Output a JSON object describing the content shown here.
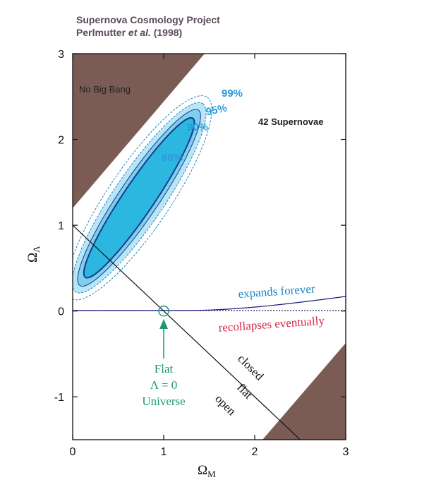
{
  "header": {
    "title": "Supernova Cosmology Project",
    "authors_prefix": "Perlmutter ",
    "authors_etal": "et al.",
    "authors_year": " (1998)"
  },
  "chart_data": {
    "type": "scatter",
    "title": "",
    "xlabel": "Ω",
    "xlabel_sub": "M",
    "ylabel": "Ω",
    "ylabel_sub": "Λ",
    "xlim": [
      0,
      3
    ],
    "ylim": [
      -1.5,
      3
    ],
    "x_ticks": [
      "0",
      "1",
      "2",
      "3"
    ],
    "y_ticks": [
      "-1",
      "0",
      "1",
      "2",
      "3"
    ],
    "grid": false,
    "confidence_levels": [
      "68%",
      "90%",
      "95%",
      "99%"
    ],
    "best_fit_ellipse": {
      "center": [
        0.73,
        1.32
      ],
      "axis_slope": 1.57
    },
    "annotations": {
      "no_big_bang": "No Big Bang",
      "sample": "42 Supernovae",
      "expands": "expands forever",
      "recollapses": "recollapses eventually",
      "closed": "closed",
      "flat": "flat",
      "open": "open",
      "flat_universe_1": "Flat",
      "flat_universe_2": "Λ = 0",
      "flat_universe_3": "Universe"
    },
    "flat_line": {
      "points": [
        [
          0,
          1
        ],
        [
          2.5,
          -1.5
        ]
      ]
    },
    "flat_universe_point": [
      1,
      0
    ],
    "colors": {
      "excluded_region": "#7b5c55",
      "contour_68": "#2bb7e0",
      "contour_90": "#7fd0ee",
      "contour_95": "#b9e6f6",
      "contour_line": "#1a3a8a",
      "expands": "#1a86c8",
      "recollapses": "#d8284a",
      "flat_marker": "#1c9a6c",
      "conf_label": "#2a9ad8"
    }
  }
}
